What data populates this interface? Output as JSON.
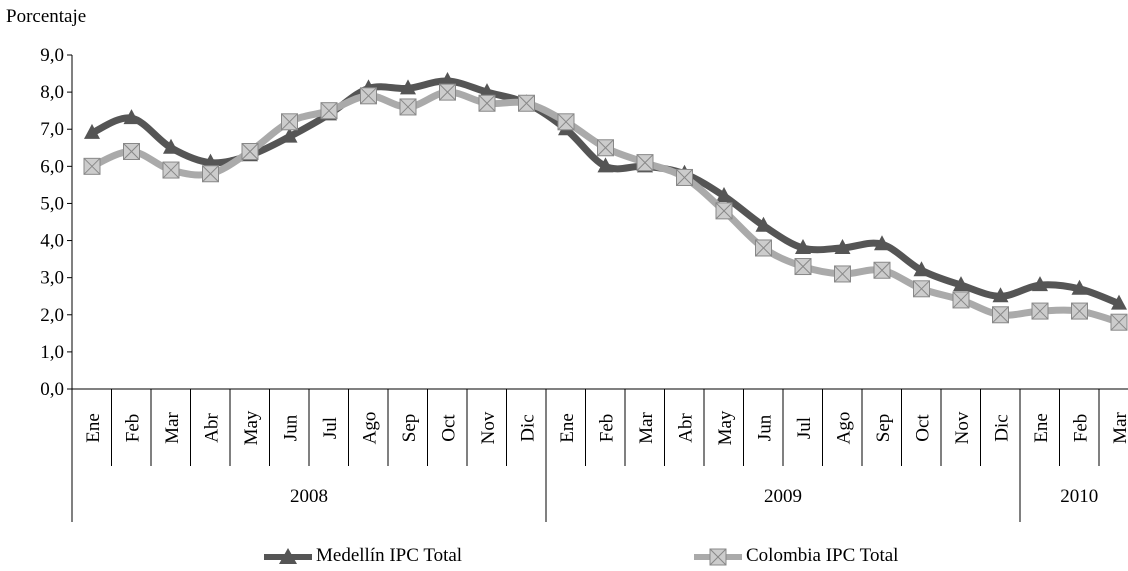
{
  "chart_data": {
    "type": "line",
    "ylabel": "Porcentaje",
    "ylim": [
      0,
      9
    ],
    "yticks": [
      "0,0",
      "1,0",
      "2,0",
      "3,0",
      "4,0",
      "5,0",
      "6,0",
      "7,0",
      "8,0",
      "9,0"
    ],
    "categories": [
      "Ene",
      "Feb",
      "Mar",
      "Abr",
      "May",
      "Jun",
      "Jul",
      "Ago",
      "Sep",
      "Oct",
      "Nov",
      "Dic",
      "Ene",
      "Feb",
      "Mar",
      "Abr",
      "May",
      "Jun",
      "Jul",
      "Ago",
      "Sep",
      "Oct",
      "Nov",
      "Dic",
      "Ene",
      "Feb",
      "Mar"
    ],
    "years": [
      {
        "label": "2008",
        "months": 12
      },
      {
        "label": "2009",
        "months": 12
      },
      {
        "label": "2010",
        "months": 3
      }
    ],
    "series": [
      {
        "name": "Medellín IPC Total",
        "color": "#555555",
        "marker": "triangle",
        "values": [
          6.9,
          7.3,
          6.5,
          6.1,
          6.3,
          6.8,
          7.4,
          8.1,
          8.1,
          8.3,
          8.0,
          7.7,
          7.0,
          6.0,
          6.0,
          5.8,
          5.2,
          4.4,
          3.8,
          3.8,
          3.9,
          3.2,
          2.8,
          2.5,
          2.8,
          2.7,
          2.3
        ]
      },
      {
        "name": "Colombia IPC Total",
        "color": "#aaaaaa",
        "marker": "square",
        "values": [
          6.0,
          6.4,
          5.9,
          5.8,
          6.4,
          7.2,
          7.5,
          7.9,
          7.6,
          8.0,
          7.7,
          7.7,
          7.2,
          6.5,
          6.1,
          5.7,
          4.8,
          3.8,
          3.3,
          3.1,
          3.2,
          2.7,
          2.4,
          2.0,
          2.1,
          2.1,
          1.8
        ]
      }
    ]
  }
}
